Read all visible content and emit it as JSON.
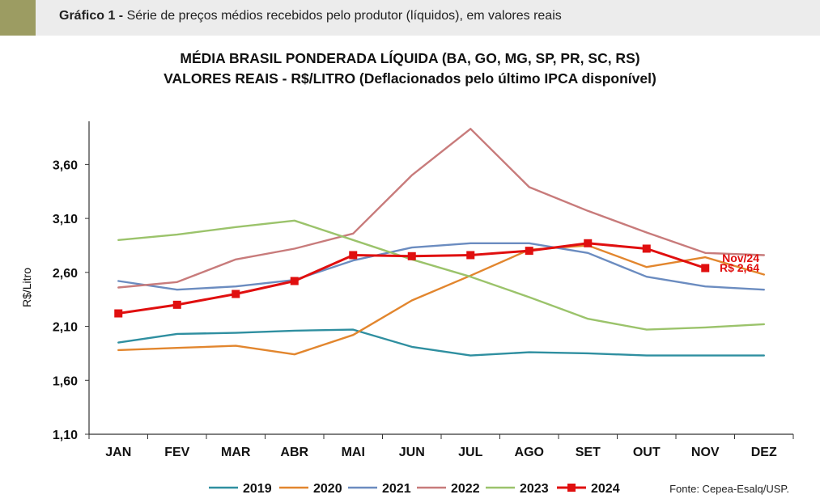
{
  "header": {
    "label": "Gráfico 1 -",
    "text": "Série de preços médios recebidos pelo produtor (líquidos), em valores reais",
    "accent_color": "#9c9c62",
    "bar_color": "#ececec"
  },
  "chart_data": {
    "type": "line",
    "title": "MÉDIA BRASIL PONDERADA LÍQUIDA (BA, GO, MG, SP, PR, SC, RS)",
    "subtitle": "VALORES REAIS - R$/LITRO (Deflacionados pelo último IPCA disponível)",
    "ylabel": "R$/Litro",
    "xlabel": "",
    "categories": [
      "JAN",
      "FEV",
      "MAR",
      "ABR",
      "MAI",
      "JUN",
      "JUL",
      "AGO",
      "SET",
      "OUT",
      "NOV",
      "DEZ"
    ],
    "ylim": [
      1.1,
      4.0
    ],
    "yticks": [
      1.1,
      1.6,
      2.1,
      2.6,
      3.1,
      3.6
    ],
    "ytick_labels": [
      "1,10",
      "1,60",
      "2,10",
      "2,60",
      "3,10",
      "3,60"
    ],
    "grid": false,
    "legend_position": "bottom",
    "series": [
      {
        "name": "2019",
        "color": "#2f8fa0",
        "values": [
          1.95,
          2.03,
          2.04,
          2.06,
          2.07,
          1.91,
          1.83,
          1.86,
          1.85,
          1.83,
          1.83,
          1.83
        ]
      },
      {
        "name": "2020",
        "color": "#e2862e",
        "values": [
          1.88,
          1.9,
          1.92,
          1.84,
          2.02,
          2.34,
          2.57,
          2.81,
          2.85,
          2.65,
          2.74,
          2.58
        ]
      },
      {
        "name": "2021",
        "color": "#6b8cc0",
        "values": [
          2.52,
          2.44,
          2.47,
          2.53,
          2.71,
          2.83,
          2.87,
          2.87,
          2.78,
          2.56,
          2.47,
          2.44
        ]
      },
      {
        "name": "2022",
        "color": "#c87b7b",
        "values": [
          2.46,
          2.51,
          2.72,
          2.82,
          2.96,
          3.5,
          3.93,
          3.39,
          3.17,
          2.97,
          2.78,
          2.76
        ]
      },
      {
        "name": "2023",
        "color": "#9bc36b",
        "values": [
          2.9,
          2.95,
          3.02,
          3.08,
          2.9,
          2.72,
          2.56,
          2.37,
          2.17,
          2.07,
          2.09,
          2.12
        ]
      },
      {
        "name": "2024",
        "color": "#e00f0f",
        "marker": "square",
        "values": [
          2.22,
          2.3,
          2.4,
          2.52,
          2.76,
          2.75,
          2.76,
          2.8,
          2.87,
          2.82,
          2.64,
          null
        ]
      }
    ],
    "annotation": {
      "line1": "Nov/24",
      "line2": "R$ 2,64",
      "color": "#e00f0f"
    }
  },
  "source": "Fonte: Cepea-Esalq/USP."
}
